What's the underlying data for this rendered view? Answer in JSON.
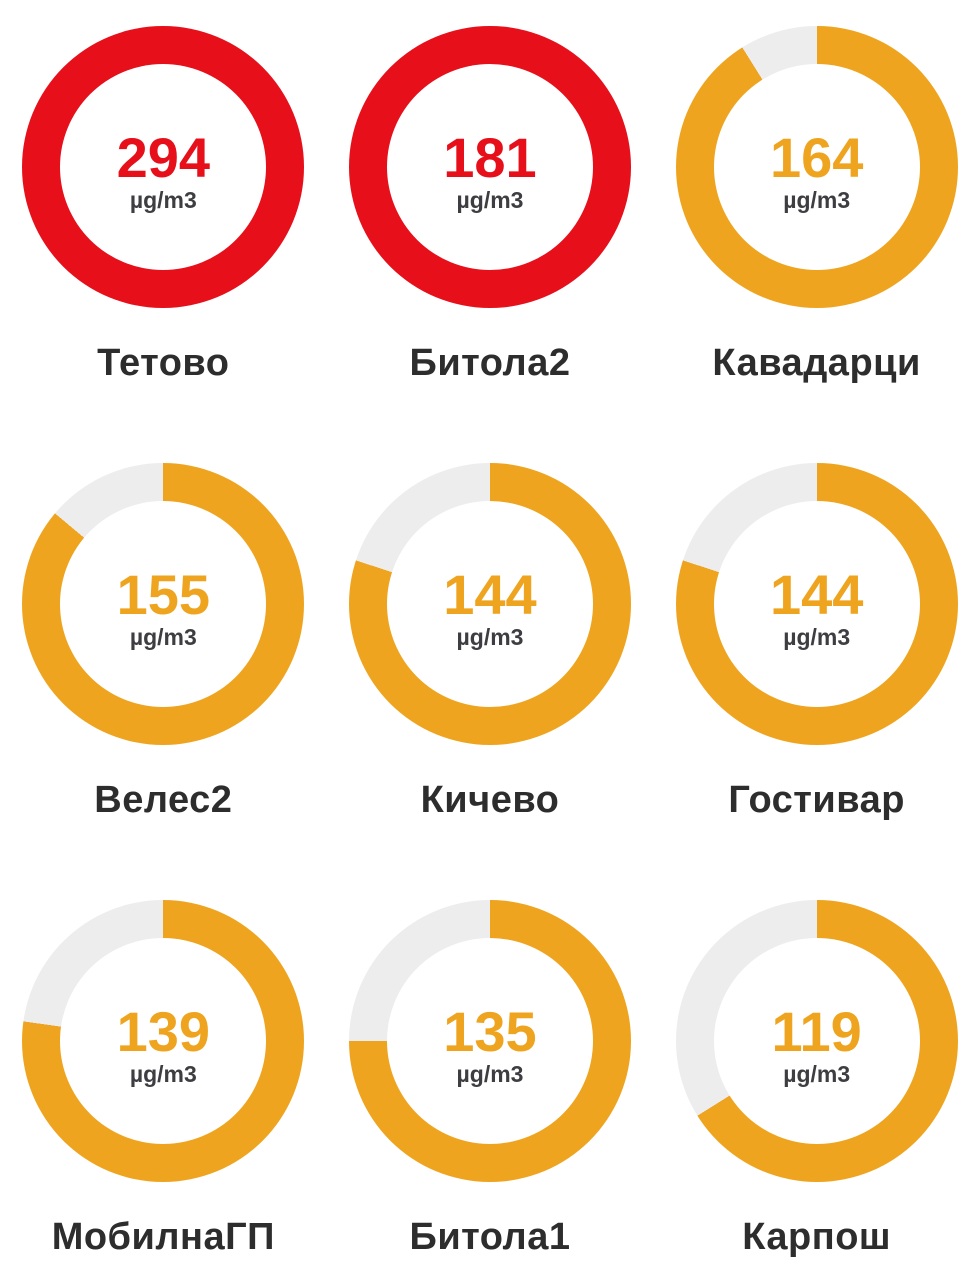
{
  "page": {
    "background": "#ffffff"
  },
  "gauge_config": {
    "max_value": 180,
    "track_color": "#ededed",
    "level_colors": {
      "red": "#e60f1a",
      "orange": "#efa41f"
    },
    "unit_text_color": "#3e3e42",
    "label_text_color": "#2d2d2d",
    "unit": "µg/m3"
  },
  "stations": [
    {
      "name": "Тетово",
      "value": 294,
      "unit": "µg/m3",
      "level": "red"
    },
    {
      "name": "Битола2",
      "value": 181,
      "unit": "µg/m3",
      "level": "red"
    },
    {
      "name": "Кавадарци",
      "value": 164,
      "unit": "µg/m3",
      "level": "orange"
    },
    {
      "name": "Велес2",
      "value": 155,
      "unit": "µg/m3",
      "level": "orange"
    },
    {
      "name": "Кичево",
      "value": 144,
      "unit": "µg/m3",
      "level": "orange"
    },
    {
      "name": "Гостивар",
      "value": 144,
      "unit": "µg/m3",
      "level": "orange"
    },
    {
      "name": "МобилнаГП",
      "value": 139,
      "unit": "µg/m3",
      "level": "orange"
    },
    {
      "name": "Битола1",
      "value": 135,
      "unit": "µg/m3",
      "level": "orange"
    },
    {
      "name": "Карпош",
      "value": 119,
      "unit": "µg/m3",
      "level": "orange"
    }
  ],
  "chart_data": {
    "type": "pie",
    "variant": "donut-gauge-grid",
    "layout": "3x3-grid",
    "categories": [
      "Тетово",
      "Битола2",
      "Кавадарци",
      "Велес2",
      "Кичево",
      "Гостивар",
      "МобилнаГП",
      "Битола1",
      "Карпош"
    ],
    "values": [
      294,
      181,
      164,
      155,
      144,
      144,
      139,
      135,
      119
    ],
    "unit": "µg/m3",
    "gauge_max": 180,
    "fill_degrees": [
      360,
      360,
      328,
      310,
      288,
      288,
      278,
      270,
      238
    ],
    "segment_colors": [
      "#e60f1a",
      "#e60f1a",
      "#efa41f",
      "#efa41f",
      "#efa41f",
      "#efa41f",
      "#efa41f",
      "#efa41f",
      "#efa41f"
    ],
    "track_color": "#ededed",
    "legend_position": "none",
    "grid": false
  }
}
